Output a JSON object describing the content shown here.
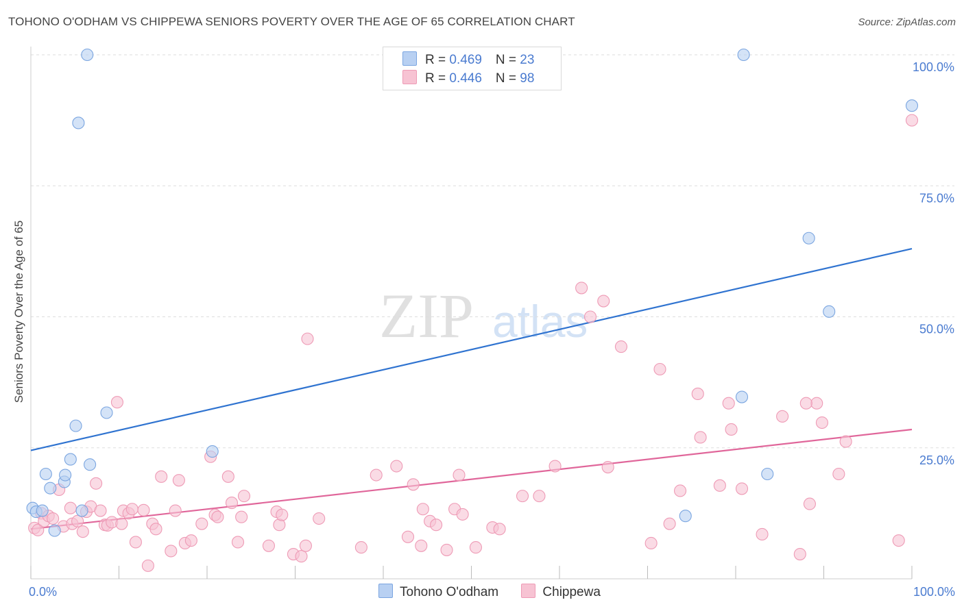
{
  "title": "TOHONO O'ODHAM VS CHIPPEWA SENIORS POVERTY OVER THE AGE OF 65 CORRELATION CHART",
  "source": "Source: ZipAtlas.com",
  "watermark": {
    "zip": "ZIP",
    "atlas": "atlas"
  },
  "colors": {
    "blue_fill": "#b8d0f2",
    "blue_stroke": "#7aa5e0",
    "blue_line": "#2f73d0",
    "pink_fill": "#f7c3d3",
    "pink_stroke": "#ee9ab5",
    "pink_line": "#e0669a",
    "tick_color": "#4a7bd0",
    "grid": "#dddddd"
  },
  "legend": {
    "row1": {
      "r_label": "R = ",
      "r_value": "0.469",
      "n_label": "N = ",
      "n_value": "23"
    },
    "row2": {
      "r_label": "R = ",
      "r_value": "0.446",
      "n_label": "N = ",
      "n_value": "98"
    }
  },
  "bottom_legend": {
    "series1": "Tohono O'odham",
    "series2": "Chippewa"
  },
  "chart_data": {
    "type": "scatter",
    "title": "TOHONO O'ODHAM VS CHIPPEWA SENIORS POVERTY OVER THE AGE OF 65 CORRELATION CHART",
    "xlabel": "",
    "ylabel": "Seniors Poverty Over the Age of 65",
    "xlim": [
      0,
      100
    ],
    "ylim": [
      0,
      100
    ],
    "x_tick_labels": [
      "0.0%",
      "100.0%"
    ],
    "y_ticks": [
      25,
      50,
      75,
      100
    ],
    "y_tick_labels": [
      "25.0%",
      "50.0%",
      "75.0%",
      "100.0%"
    ],
    "grid": true,
    "series": [
      {
        "name": "Tohono O'odham",
        "color": "#b8d0f2",
        "trend": {
          "start": [
            0,
            24.5
          ],
          "end": [
            100,
            63.0
          ]
        },
        "points": [
          [
            0.2,
            13.5
          ],
          [
            0.6,
            12.8
          ],
          [
            1.3,
            13.0
          ],
          [
            1.7,
            20.0
          ],
          [
            2.2,
            17.3
          ],
          [
            2.7,
            9.2
          ],
          [
            3.8,
            18.5
          ],
          [
            3.9,
            19.8
          ],
          [
            4.5,
            22.8
          ],
          [
            5.1,
            29.2
          ],
          [
            5.4,
            87.0
          ],
          [
            5.8,
            13.0
          ],
          [
            6.4,
            100.0
          ],
          [
            6.7,
            21.8
          ],
          [
            8.6,
            31.7
          ],
          [
            20.6,
            24.3
          ],
          [
            74.3,
            12.0
          ],
          [
            80.7,
            34.7
          ],
          [
            80.9,
            100.0
          ],
          [
            90.6,
            51.0
          ],
          [
            83.6,
            20.0
          ],
          [
            88.3,
            65.0
          ],
          [
            100.0,
            90.3
          ]
        ]
      },
      {
        "name": "Chippewa",
        "color": "#f7c3d3",
        "trend": {
          "start": [
            0,
            9.5
          ],
          "end": [
            100,
            28.5
          ]
        },
        "points": [
          [
            0.4,
            9.7
          ],
          [
            0.8,
            9.3
          ],
          [
            1.2,
            12.5
          ],
          [
            1.5,
            11.0
          ],
          [
            2.0,
            12.0
          ],
          [
            2.5,
            11.5
          ],
          [
            3.2,
            17.0
          ],
          [
            3.7,
            10.0
          ],
          [
            4.5,
            13.5
          ],
          [
            4.7,
            10.5
          ],
          [
            5.3,
            11.0
          ],
          [
            5.9,
            9.0
          ],
          [
            6.3,
            12.8
          ],
          [
            6.8,
            13.8
          ],
          [
            7.4,
            18.2
          ],
          [
            7.9,
            13.0
          ],
          [
            8.4,
            10.3
          ],
          [
            8.7,
            10.2
          ],
          [
            9.2,
            10.8
          ],
          [
            9.8,
            33.7
          ],
          [
            10.3,
            10.5
          ],
          [
            10.5,
            13.0
          ],
          [
            11.1,
            12.5
          ],
          [
            11.5,
            13.3
          ],
          [
            11.9,
            7.0
          ],
          [
            12.8,
            13.1
          ],
          [
            13.3,
            2.5
          ],
          [
            13.8,
            10.5
          ],
          [
            14.2,
            9.5
          ],
          [
            14.8,
            19.5
          ],
          [
            15.9,
            5.3
          ],
          [
            16.4,
            13.0
          ],
          [
            16.8,
            18.8
          ],
          [
            17.5,
            6.8
          ],
          [
            18.2,
            7.3
          ],
          [
            19.4,
            10.5
          ],
          [
            20.4,
            23.3
          ],
          [
            20.9,
            12.2
          ],
          [
            21.2,
            11.8
          ],
          [
            22.4,
            19.5
          ],
          [
            22.8,
            14.5
          ],
          [
            23.5,
            7.0
          ],
          [
            23.9,
            11.8
          ],
          [
            24.2,
            15.8
          ],
          [
            27.0,
            6.3
          ],
          [
            27.9,
            12.8
          ],
          [
            28.2,
            10.3
          ],
          [
            28.5,
            12.2
          ],
          [
            29.8,
            4.7
          ],
          [
            30.7,
            4.3
          ],
          [
            31.2,
            6.3
          ],
          [
            31.4,
            45.8
          ],
          [
            32.7,
            11.5
          ],
          [
            37.5,
            6.0
          ],
          [
            39.2,
            19.8
          ],
          [
            41.5,
            21.5
          ],
          [
            42.8,
            8.0
          ],
          [
            43.4,
            18.0
          ],
          [
            44.3,
            6.3
          ],
          [
            44.5,
            13.3
          ],
          [
            45.3,
            11.0
          ],
          [
            46.0,
            10.3
          ],
          [
            47.2,
            5.5
          ],
          [
            48.1,
            13.3
          ],
          [
            48.6,
            19.8
          ],
          [
            49.0,
            12.3
          ],
          [
            50.5,
            6.0
          ],
          [
            52.4,
            9.8
          ],
          [
            53.2,
            9.5
          ],
          [
            55.8,
            15.8
          ],
          [
            57.7,
            15.8
          ],
          [
            59.5,
            21.5
          ],
          [
            62.5,
            55.5
          ],
          [
            63.5,
            50.0
          ],
          [
            65.0,
            53.0
          ],
          [
            65.5,
            21.3
          ],
          [
            67.0,
            44.3
          ],
          [
            70.4,
            6.8
          ],
          [
            71.4,
            40.0
          ],
          [
            72.5,
            10.5
          ],
          [
            73.7,
            16.8
          ],
          [
            75.7,
            35.3
          ],
          [
            76.0,
            27.0
          ],
          [
            78.2,
            17.8
          ],
          [
            79.2,
            33.5
          ],
          [
            79.5,
            28.5
          ],
          [
            80.7,
            17.2
          ],
          [
            83.0,
            8.5
          ],
          [
            85.3,
            31.0
          ],
          [
            87.3,
            4.7
          ],
          [
            88.4,
            14.3
          ],
          [
            89.2,
            33.5
          ],
          [
            89.8,
            29.8
          ],
          [
            91.7,
            20.0
          ],
          [
            92.5,
            26.2
          ],
          [
            98.5,
            7.3
          ],
          [
            100.0,
            87.5
          ],
          [
            88.0,
            33.5
          ]
        ]
      }
    ]
  }
}
